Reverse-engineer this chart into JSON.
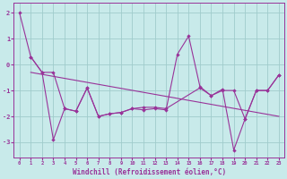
{
  "background_color": "#c8eaea",
  "grid_color": "#a0cccc",
  "line_color": "#993399",
  "xlabel": "Windchill (Refroidissement éolien,°C)",
  "x_ticks": [
    0,
    1,
    2,
    3,
    4,
    5,
    6,
    7,
    8,
    9,
    10,
    11,
    12,
    13,
    14,
    15,
    16,
    17,
    18,
    19,
    20,
    21,
    22,
    23
  ],
  "y_ticks": [
    -3,
    -2,
    -1,
    0,
    1,
    2
  ],
  "ylim": [
    -3.6,
    2.4
  ],
  "xlim": [
    -0.5,
    23.5
  ],
  "series1_x": [
    0,
    1,
    2,
    3,
    4,
    5,
    6,
    7,
    8,
    9,
    10,
    11,
    12,
    13,
    14,
    15,
    16,
    17,
    18,
    19,
    20,
    21,
    22,
    23
  ],
  "series1_y": [
    2.0,
    0.3,
    -0.3,
    -2.9,
    -1.7,
    -1.8,
    -0.9,
    -2.0,
    -1.9,
    -1.85,
    -1.7,
    -1.75,
    -1.7,
    -1.75,
    0.4,
    1.1,
    -0.85,
    -1.2,
    -0.95,
    -3.3,
    -2.1,
    -1.0,
    -1.0,
    -0.4
  ],
  "series2_x": [
    1,
    2,
    3,
    4,
    5,
    6,
    7,
    8,
    9,
    10,
    11,
    12,
    13,
    16,
    17,
    18,
    19,
    20,
    21,
    22,
    23
  ],
  "series2_y": [
    0.3,
    -0.3,
    -0.3,
    -1.7,
    -1.8,
    -0.9,
    -2.0,
    -1.9,
    -1.85,
    -1.7,
    -1.65,
    -1.65,
    -1.7,
    -0.9,
    -1.2,
    -1.0,
    -1.0,
    -2.1,
    -1.0,
    -1.0,
    -0.4
  ]
}
